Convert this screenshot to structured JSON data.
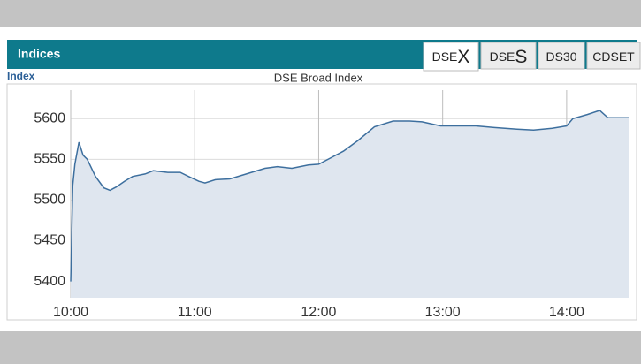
{
  "panel": {
    "title": "Indices",
    "tabs": [
      {
        "label": "DSE",
        "emphasis": "X"
      },
      {
        "label": "DSE",
        "emphasis": "S"
      },
      {
        "label": "DS30"
      },
      {
        "label": "CDSET"
      }
    ]
  },
  "chart_data": {
    "type": "area",
    "title": "DSE Broad Index",
    "y_label": "Index",
    "color": "#3d6f9e",
    "fill": "#dfe6ef",
    "grid": true,
    "x": [
      "10:00",
      "10:01",
      "10:02",
      "10:04",
      "10:06",
      "10:08",
      "10:12",
      "10:16",
      "10:19",
      "10:22",
      "10:26",
      "10:30",
      "10:36",
      "10:40",
      "10:47",
      "10:53",
      "10:57",
      "11:02",
      "11:05",
      "11:10",
      "11:17",
      "11:25",
      "11:34",
      "11:40",
      "11:47",
      "11:55",
      "12:00",
      "12:06",
      "12:12",
      "12:19",
      "12:27",
      "12:36",
      "12:44",
      "12:50",
      "12:59",
      "13:08",
      "13:16",
      "13:25",
      "13:36",
      "13:44",
      "13:53",
      "14:00",
      "14:03",
      "14:10",
      "14:16",
      "14:20",
      "14:30"
    ],
    "values": [
      5400,
      5518,
      5544,
      5571,
      5555,
      5550,
      5529,
      5515,
      5512,
      5516,
      5523,
      5529,
      5532,
      5536,
      5534,
      5534,
      5529,
      5523,
      5521,
      5525,
      5526,
      5532,
      5539,
      5541,
      5539,
      5543,
      5544,
      5552,
      5560,
      5573,
      5590,
      5597,
      5597,
      5596,
      5591,
      5591,
      5591,
      5589,
      5587,
      5586,
      5588,
      5591,
      5600,
      5605,
      5610,
      5601,
      5601
    ],
    "xlim": [
      "10:00",
      "14:30"
    ],
    "xticks": [
      "10:00",
      "11:00",
      "12:00",
      "13:00",
      "14:00"
    ],
    "ylim": [
      5380,
      5635
    ],
    "yticks": [
      5400,
      5450,
      5500,
      5550,
      5600
    ]
  }
}
